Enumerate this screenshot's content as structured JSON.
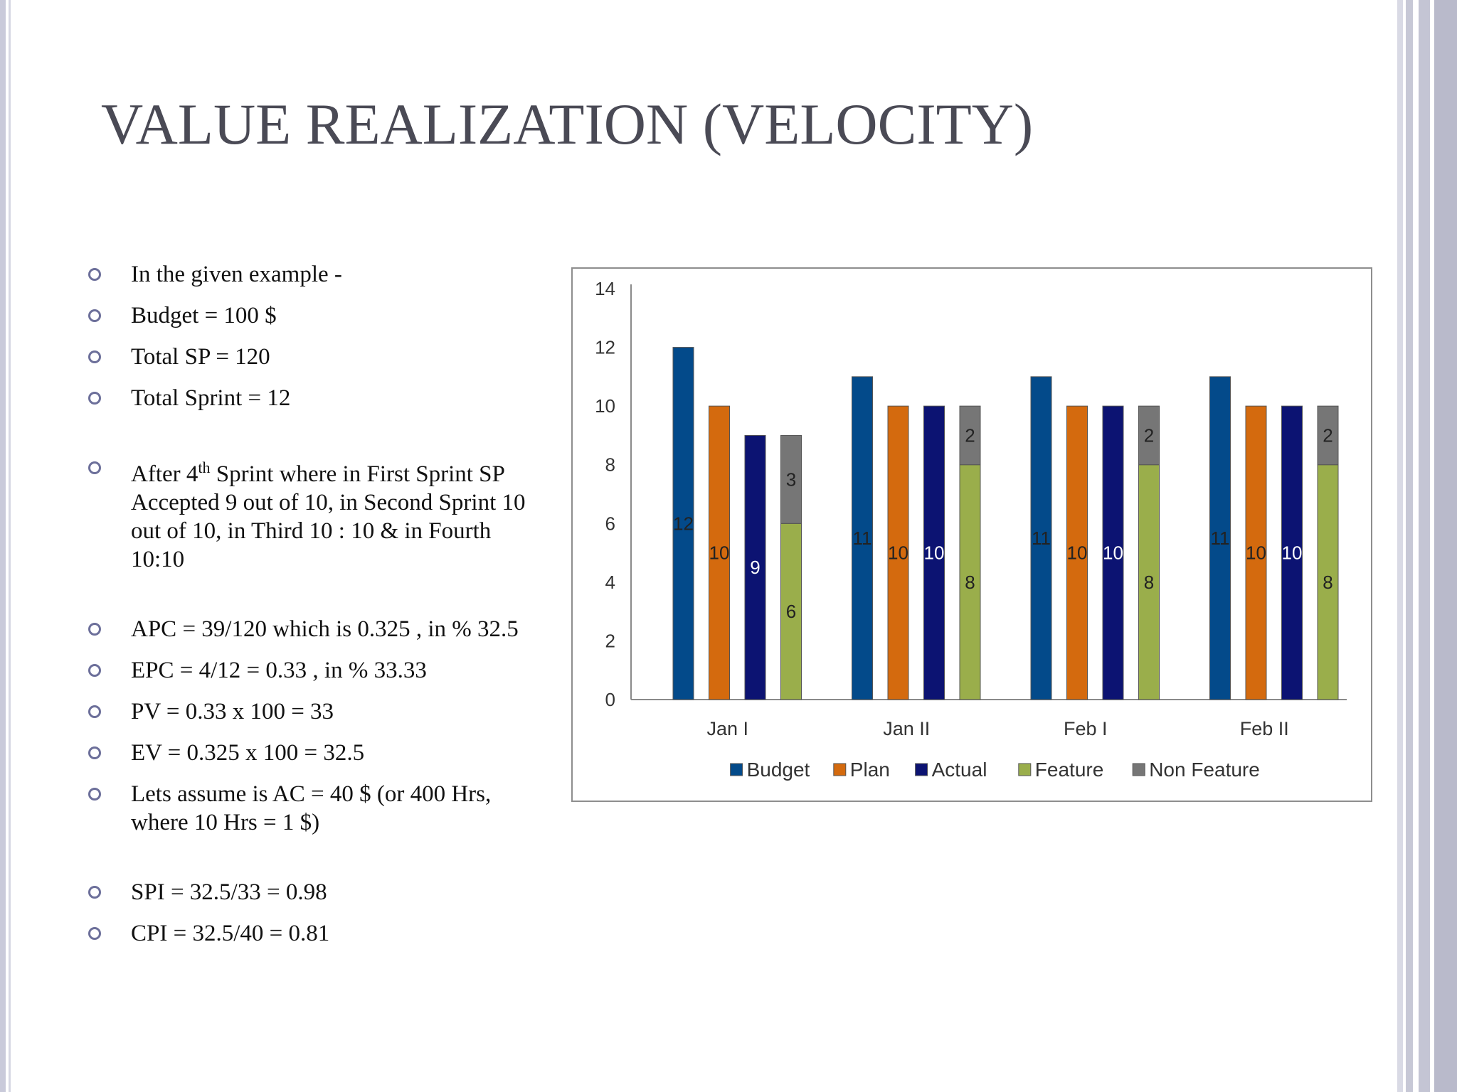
{
  "slide": {
    "title": "VALUE REALIZATION (VELOCITY)",
    "bullets": [
      {
        "text": "In the given example -",
        "gap": false
      },
      {
        "text": "Budget = 100 $",
        "gap": false
      },
      {
        "text": "Total SP = 120",
        "gap": false
      },
      {
        "text": "Total Sprint = 12",
        "gap": false
      },
      {
        "text_before": "After 4",
        "sup": "th",
        "text_after": " Sprint where in First Sprint SP Accepted 9 out of 10, in Second Sprint 10 out of 10, in Third 10 : 10 & in Fourth 10:10",
        "gap": true
      },
      {
        "text": "APC = 39/120 which is 0.325 , in % 32.5",
        "gap": true
      },
      {
        "text": "EPC = 4/12 = 0.33 , in % 33.33",
        "gap": false
      },
      {
        "text": "PV = 0.33 x 100 = 33",
        "gap": false
      },
      {
        "text": "EV = 0.325 x 100 = 32.5",
        "gap": false
      },
      {
        "text": "Lets assume is AC = 40 $ (or 400 Hrs, where 10 Hrs = 1 $)",
        "gap": false
      },
      {
        "text": "SPI = 32.5/33 = 0.98",
        "gap": true
      },
      {
        "text": "CPI = 32.5/40 = 0.81",
        "gap": false
      }
    ]
  },
  "chart_data": {
    "type": "bar",
    "categories": [
      "Jan I",
      "Jan II",
      "Feb I",
      "Feb II"
    ],
    "ylim": [
      0,
      14
    ],
    "yticks": [
      0,
      2,
      4,
      6,
      8,
      10,
      12,
      14
    ],
    "legend_position": "bottom",
    "series": [
      {
        "name": "Budget",
        "color": "#034a8a",
        "values": [
          12,
          11,
          11,
          11
        ]
      },
      {
        "name": "Plan",
        "color": "#d46a0e",
        "values": [
          10,
          10,
          10,
          10
        ]
      },
      {
        "name": "Actual",
        "color": "#0c1372",
        "values": [
          9,
          10,
          10,
          10
        ]
      },
      {
        "name": "Feature",
        "color": "#9aae4b",
        "stack": "actual-split",
        "values": [
          6,
          8,
          8,
          8
        ]
      },
      {
        "name": "Non Feature",
        "color": "#767676",
        "stack": "actual-split",
        "values": [
          3,
          2,
          2,
          2
        ]
      }
    ]
  }
}
